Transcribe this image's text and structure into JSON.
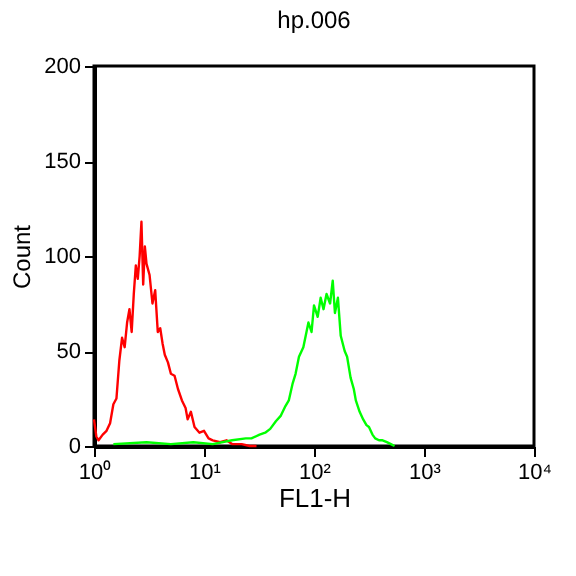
{
  "chart_data": {
    "type": "line",
    "title": "hp.006",
    "xlabel": "FL1-H",
    "ylabel": "Count",
    "log": "x",
    "grid": false,
    "marker": "none",
    "line_style": "solid",
    "xlim": [
      1,
      10000
    ],
    "xticks": [
      {
        "value": 1,
        "label": "10⁰"
      },
      {
        "value": 10,
        "label": "10¹"
      },
      {
        "value": 100,
        "label": "10²"
      },
      {
        "value": 1000,
        "label": "10³"
      },
      {
        "value": 10000,
        "label": "10⁴"
      }
    ],
    "ylim": [
      0,
      200
    ],
    "yticks": [
      0,
      50,
      100,
      150,
      200
    ],
    "series": [
      {
        "color": "#ff0000",
        "x": [
          1,
          1.05,
          1.1,
          1.2,
          1.3,
          1.4,
          1.5,
          1.6,
          1.7,
          1.8,
          1.9,
          2.0,
          2.1,
          2.2,
          2.3,
          2.4,
          2.5,
          2.6,
          2.7,
          2.8,
          2.9,
          3.0,
          3.2,
          3.4,
          3.6,
          3.8,
          4.0,
          4.2,
          4.4,
          4.7,
          5.0,
          5.4,
          5.8,
          6.3,
          6.8,
          7.1,
          7.6,
          8.2,
          9.1,
          10,
          11,
          12,
          14,
          16,
          18,
          22,
          26,
          30
        ],
        "values": [
          14,
          5,
          3,
          6,
          8,
          12,
          22,
          25,
          45,
          57,
          52,
          65,
          72,
          60,
          80,
          95,
          88,
          100,
          118,
          85,
          105,
          96,
          90,
          75,
          82,
          60,
          62,
          54,
          48,
          44,
          38,
          37,
          30,
          24,
          20,
          14,
          18,
          10,
          7,
          8,
          4,
          3,
          2,
          3,
          1,
          1,
          0,
          0
        ]
      },
      {
        "color": "#00ff00",
        "x": [
          1.5,
          3,
          5,
          8,
          12,
          18,
          24,
          27,
          32,
          36,
          40,
          45,
          50,
          55,
          59,
          64,
          68,
          73,
          80,
          89,
          95,
          100,
          108,
          115,
          122,
          130,
          140,
          148,
          155,
          165,
          175,
          190,
          200,
          215,
          230,
          240,
          260,
          280,
          300,
          316,
          340,
          360,
          390,
          420,
          460,
          500,
          540
        ],
        "values": [
          1,
          2,
          1,
          2,
          1,
          3,
          4,
          4,
          6,
          7,
          9,
          13,
          16,
          21,
          24,
          33,
          38,
          47,
          52,
          65,
          60,
          74,
          68,
          78,
          72,
          80,
          75,
          87,
          70,
          78,
          58,
          50,
          47,
          36,
          30,
          24,
          18,
          14,
          11,
          10,
          6,
          4,
          3,
          3,
          2,
          1,
          0
        ]
      }
    ]
  }
}
